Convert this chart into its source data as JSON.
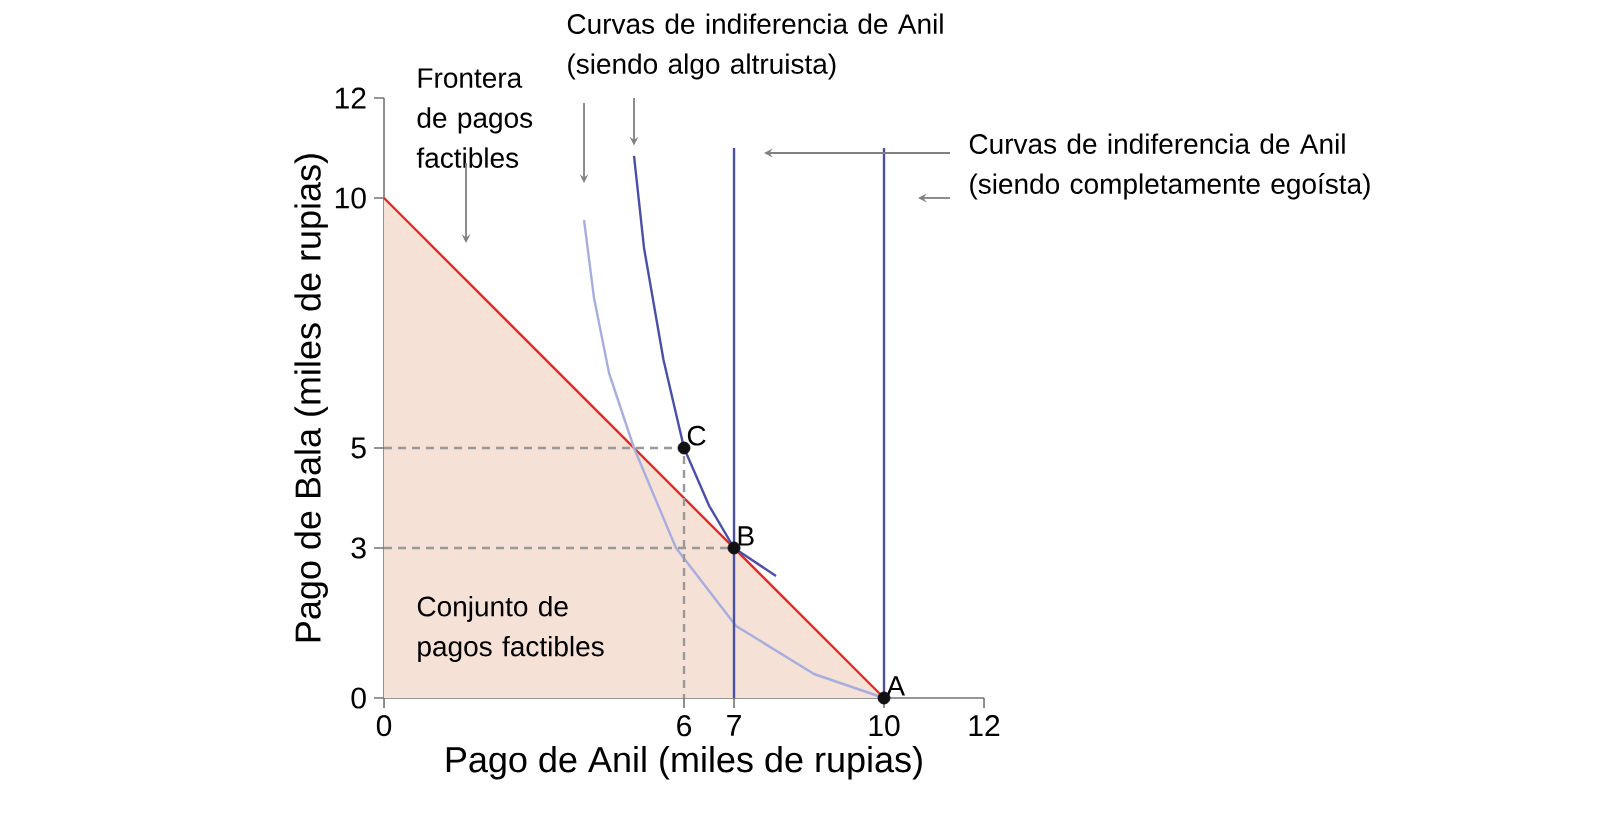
{
  "chart_data": {
    "type": "line",
    "xlabel": "Pago de Anil (miles de rupias)",
    "ylabel": "Pago de Bala (miles de rupias)",
    "xlim": [
      0,
      12
    ],
    "ylim": [
      0,
      12
    ],
    "xticks": [
      0,
      6,
      7,
      10,
      12
    ],
    "yticks": [
      0,
      3,
      5,
      10,
      12
    ],
    "grid": false,
    "series": [
      {
        "type": "area",
        "color": "#e32a1f",
        "x": [
          0,
          10
        ],
        "values": [
          10,
          0
        ]
      },
      {
        "color": "#a7aedf",
        "x": [
          4.0,
          4.2,
          4.5,
          5,
          5.84,
          7.04,
          8.6,
          10
        ],
        "values": [
          9.56,
          8,
          6.5,
          5,
          3,
          1.44,
          0.48,
          0
        ]
      },
      {
        "color": "#4a4fa8",
        "x": [
          5.0,
          5.2,
          5.59,
          6,
          6.5,
          7,
          7.84
        ],
        "values": [
          10.84,
          9,
          6.76,
          5,
          3.85,
          3,
          2.44
        ]
      },
      {
        "color": "#4a4fa8",
        "x": [
          7,
          7
        ],
        "values": [
          0,
          11
        ]
      },
      {
        "color": "#4a4fa8",
        "x": [
          10,
          10
        ],
        "values": [
          0,
          11
        ]
      },
      {
        "color": "#999999",
        "line_style": "dashed",
        "x": [
          0,
          6,
          6
        ],
        "values": [
          5,
          5,
          0
        ]
      },
      {
        "color": "#999999",
        "line_style": "dashed",
        "x": [
          0,
          7
        ],
        "values": [
          3,
          3
        ]
      },
      {
        "type": "scatter",
        "color": "#111111",
        "marker": "circle",
        "x": [
          6,
          7,
          10
        ],
        "values": [
          5,
          3,
          0
        ]
      }
    ],
    "annotations": [
      "Frontera de pagos factibles",
      "Curvas de indiferencia de Anil (siendo algo altruista)",
      "Curvas de indiferencia de Anil (siendo completamente egoísta)",
      "Conjunto de pagos factibles",
      {
        "text": "C",
        "x": 6,
        "y": 5
      },
      {
        "text": "B",
        "x": 7,
        "y": 3
      },
      {
        "text": "A",
        "x": 10,
        "y": 0
      }
    ]
  }
}
